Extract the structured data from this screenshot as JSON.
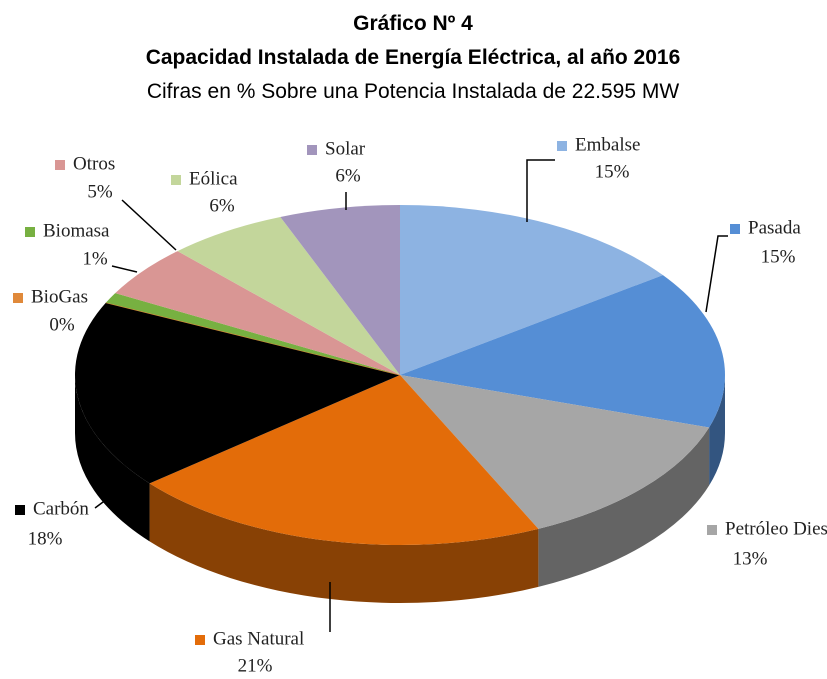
{
  "chart_data": {
    "type": "pie",
    "title": "Gráfico Nº 4",
    "subtitle": "Capacidad Instalada de Energía Eléctrica, al año 2016",
    "caption": "Cifras en % Sobre una Potencia Instalada de 22.595 MW",
    "categories": [
      "Embalse",
      "Pasada",
      "Petróleo Diesel",
      "Gas Natural",
      "Carbón",
      "BioGas",
      "Biomasa",
      "Otros",
      "Eólica",
      "Solar"
    ],
    "values": [
      15,
      15,
      13,
      21,
      18,
      0,
      1,
      5,
      6,
      6
    ],
    "value_labels": [
      "15%",
      "15%",
      "13%",
      "21%",
      "18%",
      "0%",
      "1%",
      "5%",
      "6%",
      "6%"
    ],
    "colors": [
      "#8db3e2",
      "#558ed5",
      "#a6a6a6",
      "#e36c09",
      "#000000",
      "#e0893a",
      "#77b041",
      "#d99694",
      "#c3d69b",
      "#a295bc"
    ]
  }
}
